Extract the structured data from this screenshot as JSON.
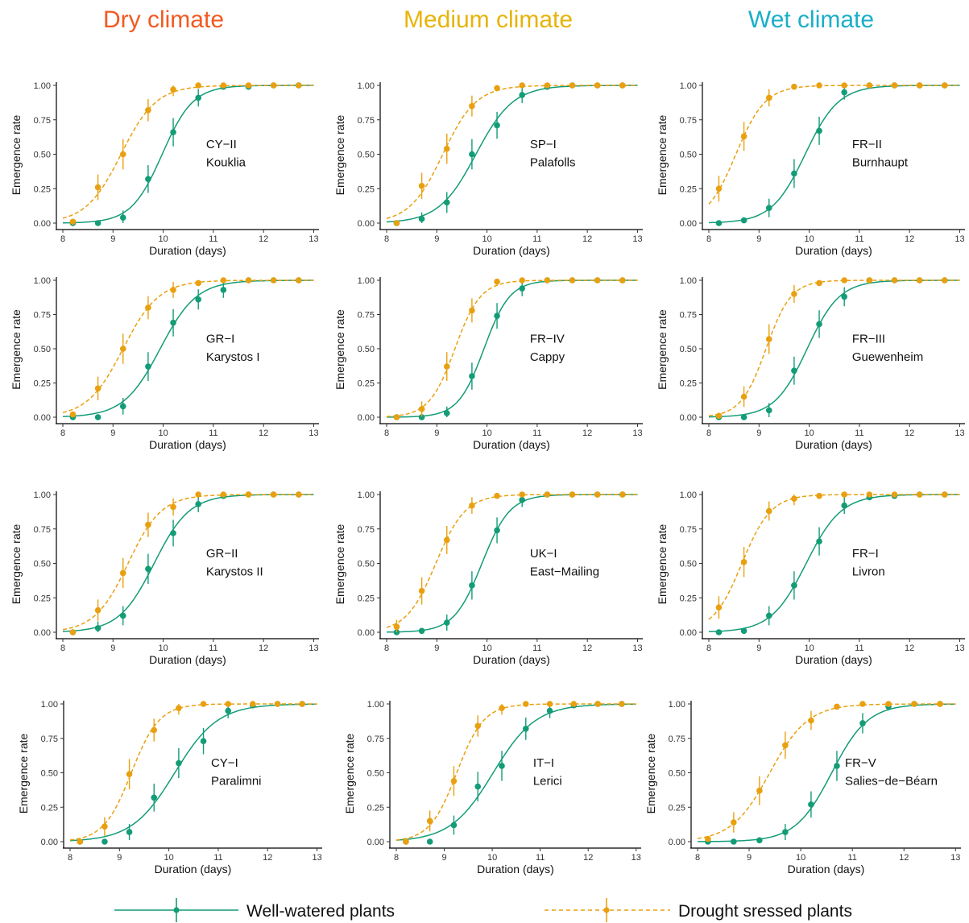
{
  "figure": {
    "column_titles": [
      {
        "label": "Dry climate",
        "color": "#f25a22"
      },
      {
        "label": "Medium climate",
        "color": "#e6b40a"
      },
      {
        "label": "Wet climate",
        "color": "#1aafc7"
      }
    ],
    "legend": [
      {
        "label": "Well-watered plants",
        "color": "#139c77",
        "style": "solid"
      },
      {
        "label": "Drought sressed plants",
        "color": "#e9a010",
        "style": "dashed"
      }
    ]
  },
  "chart_data": [
    {
      "type": "scatter",
      "code": "CY−II",
      "site": "Kouklia",
      "xlabel": "Duration (days)",
      "ylabel": "Emergence rate",
      "xlim": [
        8,
        13
      ],
      "ylim": [
        0,
        1
      ],
      "x_ticks": [
        "8",
        "9",
        "10",
        "11",
        "12",
        "13"
      ],
      "y_ticks": [
        "0.00",
        "0.25",
        "0.50",
        "0.75",
        "1.00"
      ],
      "x": [
        8.2,
        8.7,
        9.2,
        9.7,
        10.2,
        10.7,
        11.2,
        11.7,
        12.2,
        12.7
      ],
      "series": [
        {
          "name": "Well-watered plants",
          "values": [
            0.0,
            0.0,
            0.04,
            0.32,
            0.66,
            0.91,
            0.99,
            0.99,
            1.0,
            1.0
          ]
        },
        {
          "name": "Drought sressed plants",
          "values": [
            0.01,
            0.26,
            0.5,
            0.82,
            0.97,
            1.0,
            1.0,
            1.0,
            1.0,
            1.0
          ]
        }
      ]
    },
    {
      "type": "scatter",
      "code": "SP−I",
      "site": "Palafolls",
      "xlabel": "Duration (days)",
      "ylabel": "Emergence rate",
      "xlim": [
        8,
        13
      ],
      "ylim": [
        0,
        1
      ],
      "x_ticks": [
        "8",
        "9",
        "10",
        "11",
        "12",
        "13"
      ],
      "y_ticks": [
        "0.00",
        "0.25",
        "0.50",
        "0.75",
        "1.00"
      ],
      "x": [
        8.2,
        8.7,
        9.2,
        9.7,
        10.2,
        10.7,
        11.2,
        11.7,
        12.2,
        12.7
      ],
      "series": [
        {
          "name": "Well-watered plants",
          "values": [
            0.0,
            0.03,
            0.15,
            0.5,
            0.71,
            0.93,
            0.99,
            1.0,
            1.0,
            1.0
          ]
        },
        {
          "name": "Drought sressed plants",
          "values": [
            0.0,
            0.27,
            0.54,
            0.85,
            0.98,
            1.0,
            1.0,
            1.0,
            1.0,
            1.0
          ]
        }
      ]
    },
    {
      "type": "scatter",
      "code": "FR−II",
      "site": "Burnhaupt",
      "xlabel": "Duration (days)",
      "ylabel": "Emergence rate",
      "xlim": [
        8,
        13
      ],
      "ylim": [
        0,
        1
      ],
      "x_ticks": [
        "8",
        "9",
        "10",
        "11",
        "12",
        "13"
      ],
      "y_ticks": [
        "0.00",
        "0.25",
        "0.50",
        "0.75",
        "1.00"
      ],
      "x": [
        8.2,
        8.7,
        9.2,
        9.7,
        10.2,
        10.7,
        11.2,
        11.7,
        12.2,
        12.7
      ],
      "series": [
        {
          "name": "Well-watered plants",
          "values": [
            0.0,
            0.02,
            0.11,
            0.36,
            0.67,
            0.95,
            1.0,
            1.0,
            1.0,
            1.0
          ]
        },
        {
          "name": "Drought sressed plants",
          "values": [
            0.25,
            0.63,
            0.91,
            0.99,
            1.0,
            1.0,
            1.0,
            1.0,
            1.0,
            1.0
          ]
        }
      ]
    },
    {
      "type": "scatter",
      "code": "GR−I",
      "site": "Karystos I",
      "xlabel": "Duration (days)",
      "ylabel": "Emergence rate",
      "xlim": [
        8,
        13
      ],
      "ylim": [
        0,
        1
      ],
      "x_ticks": [
        "8",
        "9",
        "10",
        "11",
        "12",
        "13"
      ],
      "y_ticks": [
        "0.00",
        "0.25",
        "0.50",
        "0.75",
        "1.00"
      ],
      "x": [
        8.2,
        8.7,
        9.2,
        9.7,
        10.2,
        10.7,
        11.2,
        11.7,
        12.2,
        12.7
      ],
      "series": [
        {
          "name": "Well-watered plants",
          "values": [
            0.0,
            0.0,
            0.08,
            0.37,
            0.69,
            0.86,
            0.93,
            1.0,
            1.0,
            1.0
          ]
        },
        {
          "name": "Drought sressed plants",
          "values": [
            0.02,
            0.21,
            0.5,
            0.8,
            0.93,
            0.98,
            1.0,
            1.0,
            1.0,
            1.0
          ]
        }
      ]
    },
    {
      "type": "scatter",
      "code": "FR−IV",
      "site": "Cappy",
      "xlabel": "Duration (days)",
      "ylabel": "Emergence rate",
      "xlim": [
        8,
        13
      ],
      "ylim": [
        0,
        1
      ],
      "x_ticks": [
        "8",
        "9",
        "10",
        "11",
        "12",
        "13"
      ],
      "y_ticks": [
        "0.00",
        "0.25",
        "0.50",
        "0.75",
        "1.00"
      ],
      "x": [
        8.2,
        8.7,
        9.2,
        9.7,
        10.2,
        10.7,
        11.2,
        11.7,
        12.2,
        12.7
      ],
      "series": [
        {
          "name": "Well-watered plants",
          "values": [
            0.0,
            0.0,
            0.03,
            0.3,
            0.74,
            0.94,
            1.0,
            1.0,
            1.0,
            1.0
          ]
        },
        {
          "name": "Drought sressed plants",
          "values": [
            0.0,
            0.06,
            0.37,
            0.78,
            0.99,
            1.0,
            1.0,
            1.0,
            1.0,
            1.0
          ]
        }
      ]
    },
    {
      "type": "scatter",
      "code": "FR−III",
      "site": "Guewenheim",
      "xlabel": "Duration (days)",
      "ylabel": "Emergence rate",
      "xlim": [
        8,
        13
      ],
      "ylim": [
        0,
        1
      ],
      "x_ticks": [
        "8",
        "9",
        "10",
        "11",
        "12",
        "13"
      ],
      "y_ticks": [
        "0.00",
        "0.25",
        "0.50",
        "0.75",
        "1.00"
      ],
      "x": [
        8.2,
        8.7,
        9.2,
        9.7,
        10.2,
        10.7,
        11.2,
        11.7,
        12.2,
        12.7
      ],
      "series": [
        {
          "name": "Well-watered plants",
          "values": [
            0.0,
            0.0,
            0.05,
            0.34,
            0.68,
            0.88,
            1.0,
            1.0,
            1.0,
            1.0
          ]
        },
        {
          "name": "Drought sressed plants",
          "values": [
            0.01,
            0.15,
            0.57,
            0.9,
            0.98,
            1.0,
            1.0,
            1.0,
            1.0,
            1.0
          ]
        }
      ]
    },
    {
      "type": "scatter",
      "code": "GR−II",
      "site": "Karystos II",
      "xlabel": "Duration (days)",
      "ylabel": "Emergence rate",
      "xlim": [
        8,
        13
      ],
      "ylim": [
        0,
        1
      ],
      "x_ticks": [
        "8",
        "9",
        "10",
        "11",
        "12",
        "13"
      ],
      "y_ticks": [
        "0.00",
        "0.25",
        "0.50",
        "0.75",
        "1.00"
      ],
      "x": [
        8.2,
        8.7,
        9.2,
        9.7,
        10.2,
        10.7,
        11.2,
        11.7,
        12.2,
        12.7
      ],
      "series": [
        {
          "name": "Well-watered plants",
          "values": [
            0.0,
            0.03,
            0.12,
            0.46,
            0.72,
            0.93,
            0.99,
            1.0,
            1.0,
            1.0
          ]
        },
        {
          "name": "Drought sressed plants",
          "values": [
            0.0,
            0.16,
            0.43,
            0.78,
            0.91,
            1.0,
            1.0,
            1.0,
            1.0,
            1.0
          ]
        }
      ]
    },
    {
      "type": "scatter",
      "code": "UK−I",
      "site": "East−Mailing",
      "xlabel": "Duration (days)",
      "ylabel": "Emergence rate",
      "xlim": [
        8,
        13
      ],
      "ylim": [
        0,
        1
      ],
      "x_ticks": [
        "8",
        "9",
        "10",
        "11",
        "12",
        "13"
      ],
      "y_ticks": [
        "0.00",
        "0.25",
        "0.50",
        "0.75",
        "1.00"
      ],
      "x": [
        8.2,
        8.7,
        9.2,
        9.7,
        10.2,
        10.7,
        11.2,
        11.7,
        12.2,
        12.7
      ],
      "series": [
        {
          "name": "Well-watered plants",
          "values": [
            0.0,
            0.01,
            0.07,
            0.34,
            0.74,
            0.96,
            1.0,
            1.0,
            1.0,
            1.0
          ]
        },
        {
          "name": "Drought sressed plants",
          "values": [
            0.04,
            0.3,
            0.67,
            0.92,
            0.99,
            1.0,
            1.0,
            1.0,
            1.0,
            1.0
          ]
        }
      ]
    },
    {
      "type": "scatter",
      "code": "FR−I",
      "site": "Livron",
      "xlabel": "Duration (days)",
      "ylabel": "Emergence rate",
      "xlim": [
        8,
        13
      ],
      "ylim": [
        0,
        1
      ],
      "x_ticks": [
        "8",
        "9",
        "10",
        "11",
        "12",
        "13"
      ],
      "y_ticks": [
        "0.00",
        "0.25",
        "0.50",
        "0.75",
        "1.00"
      ],
      "x": [
        8.2,
        8.7,
        9.2,
        9.7,
        10.2,
        10.7,
        11.2,
        11.7,
        12.2,
        12.7
      ],
      "series": [
        {
          "name": "Well-watered plants",
          "values": [
            0.0,
            0.01,
            0.12,
            0.34,
            0.66,
            0.92,
            0.98,
            0.99,
            1.0,
            1.0
          ]
        },
        {
          "name": "Drought sressed plants",
          "values": [
            0.18,
            0.51,
            0.88,
            0.97,
            0.99,
            1.0,
            1.0,
            1.0,
            1.0,
            1.0
          ]
        }
      ]
    },
    {
      "type": "scatter",
      "code": "CY−I",
      "site": "Paralimni",
      "xlabel": "Duration (days)",
      "ylabel": "Emergence rate",
      "xlim": [
        8,
        13
      ],
      "ylim": [
        0,
        1
      ],
      "x_ticks": [
        "8",
        "9",
        "10",
        "11",
        "12",
        "13"
      ],
      "y_ticks": [
        "0.00",
        "0.25",
        "0.50",
        "0.75",
        "1.00"
      ],
      "x": [
        8.2,
        8.7,
        9.2,
        9.7,
        10.2,
        10.7,
        11.2,
        11.7,
        12.2,
        12.7
      ],
      "series": [
        {
          "name": "Well-watered plants",
          "values": [
            0.0,
            0.0,
            0.07,
            0.32,
            0.57,
            0.73,
            0.95,
            0.99,
            1.0,
            1.0
          ]
        },
        {
          "name": "Drought sressed plants",
          "values": [
            0.0,
            0.11,
            0.49,
            0.81,
            0.97,
            1.0,
            1.0,
            1.0,
            1.0,
            1.0
          ]
        }
      ]
    },
    {
      "type": "scatter",
      "code": "IT−I",
      "site": "Lerici",
      "xlabel": "Duration (days)",
      "ylabel": "Emergence rate",
      "xlim": [
        8,
        13
      ],
      "ylim": [
        0,
        1
      ],
      "x_ticks": [
        "8",
        "9",
        "10",
        "11",
        "12",
        "13"
      ],
      "y_ticks": [
        "0.00",
        "0.25",
        "0.50",
        "0.75",
        "1.00"
      ],
      "x": [
        8.2,
        8.7,
        9.2,
        9.7,
        10.2,
        10.7,
        11.2,
        11.7,
        12.2,
        12.7
      ],
      "series": [
        {
          "name": "Well-watered plants",
          "values": [
            0.0,
            0.0,
            0.12,
            0.4,
            0.55,
            0.82,
            0.95,
            0.99,
            1.0,
            1.0
          ]
        },
        {
          "name": "Drought sressed plants",
          "values": [
            0.0,
            0.15,
            0.44,
            0.84,
            0.97,
            1.0,
            1.0,
            1.0,
            1.0,
            1.0
          ]
        }
      ]
    },
    {
      "type": "scatter",
      "code": "FR−V",
      "site": "Salies−de−Béarn",
      "xlabel": "Duration (days)",
      "ylabel": "Emergence rate",
      "xlim": [
        8,
        13
      ],
      "ylim": [
        0,
        1
      ],
      "x_ticks": [
        "8",
        "9",
        "10",
        "11",
        "12",
        "13"
      ],
      "y_ticks": [
        "0.00",
        "0.25",
        "0.50",
        "0.75",
        "1.00"
      ],
      "x": [
        8.2,
        8.7,
        9.2,
        9.7,
        10.2,
        10.7,
        11.2,
        11.7,
        12.2,
        12.7
      ],
      "series": [
        {
          "name": "Well-watered plants",
          "values": [
            0.0,
            0.0,
            0.01,
            0.07,
            0.27,
            0.55,
            0.86,
            0.98,
            1.0,
            1.0
          ]
        },
        {
          "name": "Drought sressed plants",
          "values": [
            0.02,
            0.14,
            0.37,
            0.7,
            0.88,
            0.98,
            1.0,
            1.0,
            1.0,
            1.0
          ]
        }
      ]
    }
  ]
}
